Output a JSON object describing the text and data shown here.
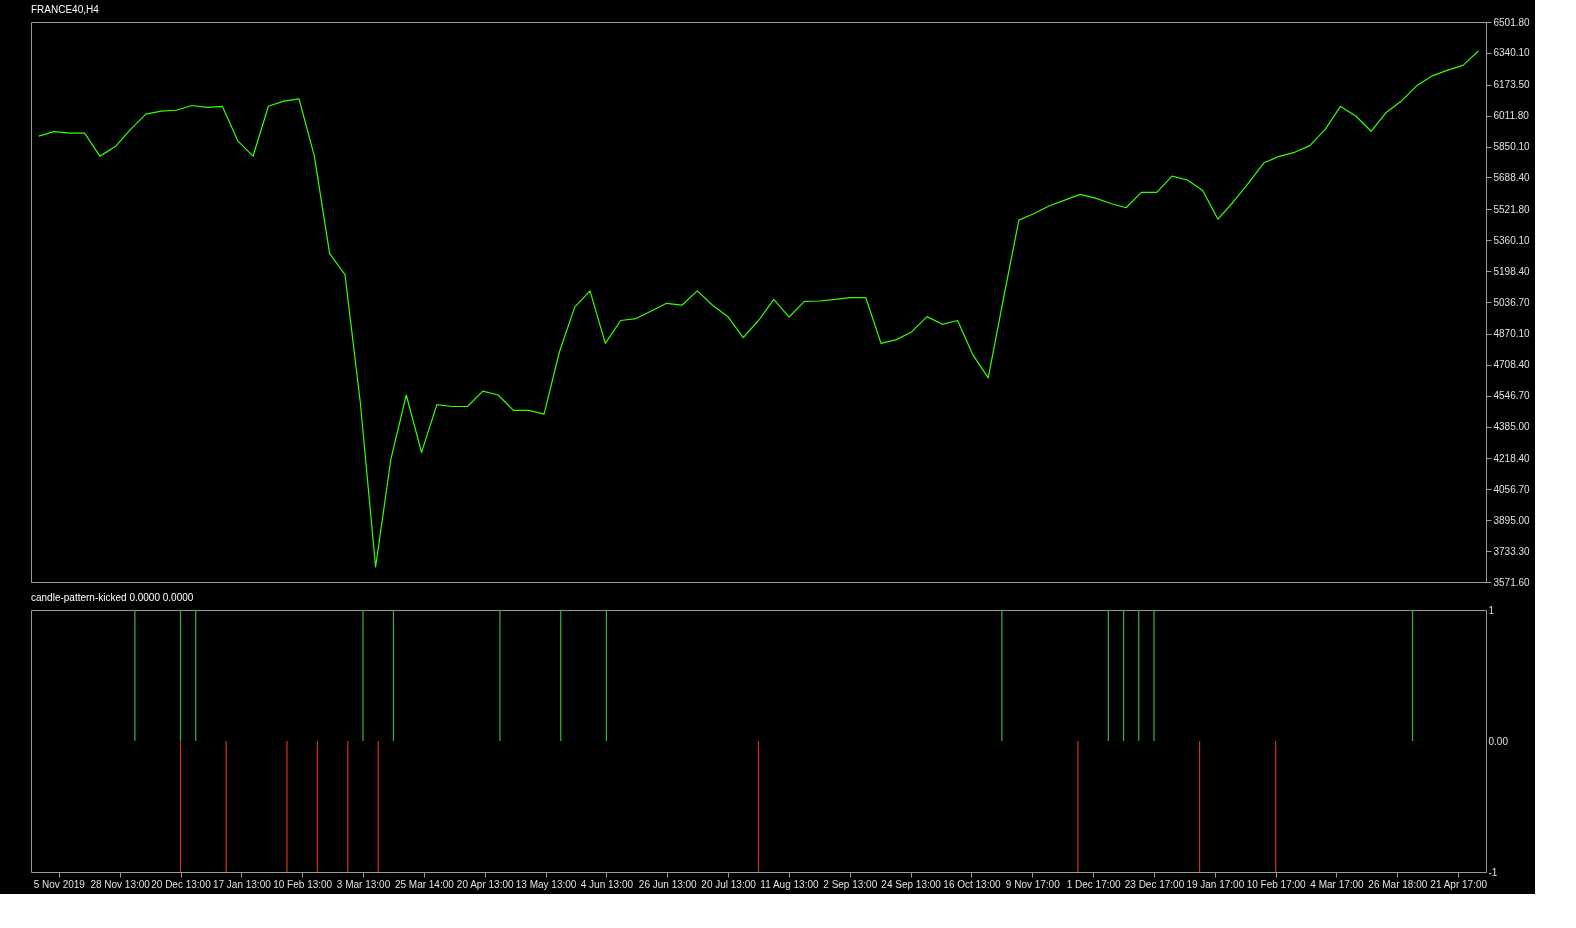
{
  "chart_data": [
    {
      "type": "line",
      "title": "FRANCE40,H4",
      "tick_labels": "y",
      "grid": false,
      "categories": [
        null,
        null,
        null,
        null,
        null,
        null,
        null,
        null,
        null,
        null,
        null,
        null,
        null,
        null,
        null,
        null,
        null,
        null,
        null,
        null,
        null,
        null,
        null,
        null,
        null,
        null,
        null,
        null,
        null,
        null,
        null,
        null,
        null,
        null,
        null,
        null,
        null,
        null,
        null,
        null,
        null,
        null,
        null,
        null,
        null,
        null,
        null,
        null,
        null,
        null,
        null,
        null,
        null,
        null,
        null,
        null,
        null,
        null,
        null,
        null,
        null,
        null,
        null,
        null,
        null,
        null,
        null,
        null,
        null,
        null,
        null,
        null,
        null,
        null,
        null,
        null,
        null,
        null,
        null,
        null,
        null,
        null,
        null,
        null,
        null,
        null,
        null,
        null,
        null,
        null,
        null,
        null,
        null,
        null,
        null
      ],
      "ylim": [
        3571.6,
        6501.8
      ],
      "yticks": [
        {
          "value": 3571.6,
          "label": "3571.60"
        },
        {
          "value": 3733.3,
          "label": "3733.30"
        },
        {
          "value": 3895.0,
          "label": "3895.00"
        },
        {
          "value": 4056.7,
          "label": "4056.70"
        },
        {
          "value": 4218.4,
          "label": "4218.40"
        },
        {
          "value": 4385.0,
          "label": "4385.00"
        },
        {
          "value": 4546.7,
          "label": "4546.70"
        },
        {
          "value": 4708.4,
          "label": "4708.40"
        },
        {
          "value": 4870.1,
          "label": "4870.10"
        },
        {
          "value": 5036.7,
          "label": "5036.70"
        },
        {
          "value": 5198.4,
          "label": "5198.40"
        },
        {
          "value": 5360.1,
          "label": "5360.10"
        },
        {
          "value": 5521.8,
          "label": "5521.80"
        },
        {
          "value": 5688.4,
          "label": "5688.40"
        },
        {
          "value": 5850.1,
          "label": "5850.10"
        },
        {
          "value": 6011.8,
          "label": "6011.80"
        },
        {
          "value": 6173.5,
          "label": "6173.50"
        },
        {
          "value": 6340.1,
          "label": "6340.10"
        },
        {
          "value": 6501.8,
          "label": "6501.80"
        }
      ],
      "series": [
        {
          "color": "#33ff00",
          "values": [
            5905,
            5928,
            5920,
            5920,
            5800,
            5850,
            5940,
            6020,
            6035,
            6040,
            6065,
            6055,
            6060,
            5880,
            5800,
            6061,
            6088,
            6100,
            5800,
            5290,
            5180,
            4512,
            3650,
            4215,
            4550,
            4250,
            4500,
            4490,
            4490,
            4570,
            4550,
            4470,
            4470,
            4450,
            4775,
            5010,
            5095,
            4820,
            4940,
            4950,
            4990,
            5030,
            5020,
            5095,
            5020,
            4960,
            4850,
            4940,
            5050,
            4958,
            5040,
            5042,
            5050,
            5060,
            5060,
            4820,
            4840,
            4880,
            4960,
            4920,
            4940,
            4760,
            4640,
            5057,
            5465,
            5500,
            5540,
            5570,
            5600,
            5580,
            5552,
            5530,
            5610,
            5610,
            5695,
            5675,
            5620,
            5470,
            5560,
            5660,
            5765,
            5799,
            5820,
            5855,
            5940,
            6060,
            6010,
            5930,
            6030,
            6090,
            6170,
            6220,
            6250,
            6275,
            6350
          ]
        }
      ]
    },
    {
      "type": "bar",
      "title": "candle-pattern-kicked 0.0000 0.0000",
      "grid": false,
      "categories": [
        null,
        "5 Nov 2019",
        null,
        null,
        null,
        "28 Nov 13:00",
        null,
        null,
        null,
        "20 Dec 13:00",
        null,
        null,
        null,
        "17 Jan 13:00",
        null,
        null,
        null,
        "10 Feb 13:00",
        null,
        null,
        null,
        "3 Mar 13:00",
        null,
        null,
        null,
        "25 Mar 14:00",
        null,
        null,
        null,
        "20 Apr 13:00",
        null,
        null,
        null,
        "13 May 13:00",
        null,
        null,
        null,
        "4 Jun 13:00",
        null,
        null,
        null,
        "26 Jun 13:00",
        null,
        null,
        null,
        "20 Jul 13:00",
        null,
        null,
        null,
        "11 Aug 13:00",
        null,
        null,
        null,
        "2 Sep 13:00",
        null,
        null,
        null,
        "24 Sep 13:00",
        null,
        null,
        null,
        "16 Oct 13:00",
        null,
        null,
        null,
        "9 Nov 17:00",
        null,
        null,
        null,
        "1 Dec 17:00",
        null,
        null,
        null,
        "23 Dec 17:00",
        null,
        null,
        null,
        "19 Jan 17:00",
        null,
        null,
        null,
        "10 Feb 17:00",
        null,
        null,
        null,
        "4 Mar 17:00",
        null,
        null,
        null,
        "26 Mar 18:00",
        null,
        null,
        null,
        "21 Apr 17:00",
        null
      ],
      "ylim": [
        -1,
        1
      ],
      "yticks": [
        {
          "value": -1,
          "label": "-1"
        },
        {
          "value": 0,
          "label": "0.00"
        },
        {
          "value": 1,
          "label": "1"
        }
      ],
      "series": [
        {
          "color": "#3cb043",
          "values": [
            null,
            null,
            null,
            null,
            null,
            null,
            1,
            null,
            null,
            1,
            1,
            null,
            null,
            null,
            null,
            null,
            null,
            null,
            null,
            null,
            null,
            1,
            null,
            1,
            null,
            null,
            null,
            null,
            null,
            null,
            1,
            null,
            null,
            null,
            1,
            null,
            null,
            1,
            null,
            null,
            null,
            null,
            null,
            null,
            null,
            null,
            null,
            null,
            null,
            null,
            null,
            null,
            null,
            null,
            null,
            null,
            null,
            null,
            null,
            null,
            null,
            null,
            null,
            1,
            null,
            null,
            null,
            null,
            null,
            null,
            1,
            1,
            1,
            1,
            null,
            null,
            null,
            null,
            null,
            null,
            null,
            null,
            null,
            null,
            null,
            null,
            null,
            null,
            null,
            null,
            1,
            null,
            null,
            null,
            null
          ]
        },
        {
          "color": "#d0301e",
          "values": [
            null,
            null,
            null,
            null,
            null,
            null,
            null,
            null,
            null,
            -1,
            null,
            null,
            -1,
            null,
            null,
            null,
            -1,
            null,
            -1,
            null,
            -1,
            null,
            -1,
            null,
            null,
            null,
            null,
            null,
            null,
            null,
            null,
            null,
            null,
            null,
            null,
            null,
            null,
            null,
            null,
            null,
            null,
            null,
            null,
            null,
            null,
            null,
            null,
            -1,
            null,
            null,
            null,
            null,
            null,
            null,
            null,
            null,
            null,
            null,
            null,
            null,
            null,
            null,
            null,
            null,
            null,
            null,
            null,
            null,
            -1,
            null,
            null,
            null,
            null,
            null,
            null,
            null,
            -1,
            null,
            null,
            null,
            null,
            -1,
            null,
            null,
            null,
            null,
            null,
            null,
            null,
            null,
            null,
            null,
            null,
            null,
            null
          ]
        }
      ]
    }
  ]
}
